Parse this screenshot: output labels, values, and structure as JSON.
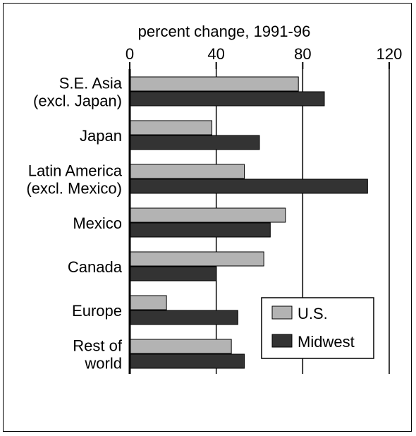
{
  "chart_data": {
    "type": "bar",
    "orientation": "horizontal",
    "title": "percent change, 1991-96",
    "xlim": [
      0,
      120
    ],
    "xticks": [
      0,
      40,
      80,
      120
    ],
    "grid": true,
    "legend_position": "bottom-right",
    "categories": [
      [
        "S.E. Asia",
        "(excl. Japan)"
      ],
      [
        "Japan"
      ],
      [
        "Latin America",
        "(excl. Mexico)"
      ],
      [
        "Mexico"
      ],
      [
        "Canada"
      ],
      [
        "Europe"
      ],
      [
        "Rest of",
        "world"
      ]
    ],
    "series": [
      {
        "name": "U.S.",
        "color": "#b3b3b3",
        "values": [
          78,
          38,
          53,
          72,
          62,
          17,
          47
        ]
      },
      {
        "name": "Midwest",
        "color": "#333333",
        "values": [
          90,
          60,
          110,
          65,
          40,
          50,
          53
        ]
      }
    ]
  }
}
